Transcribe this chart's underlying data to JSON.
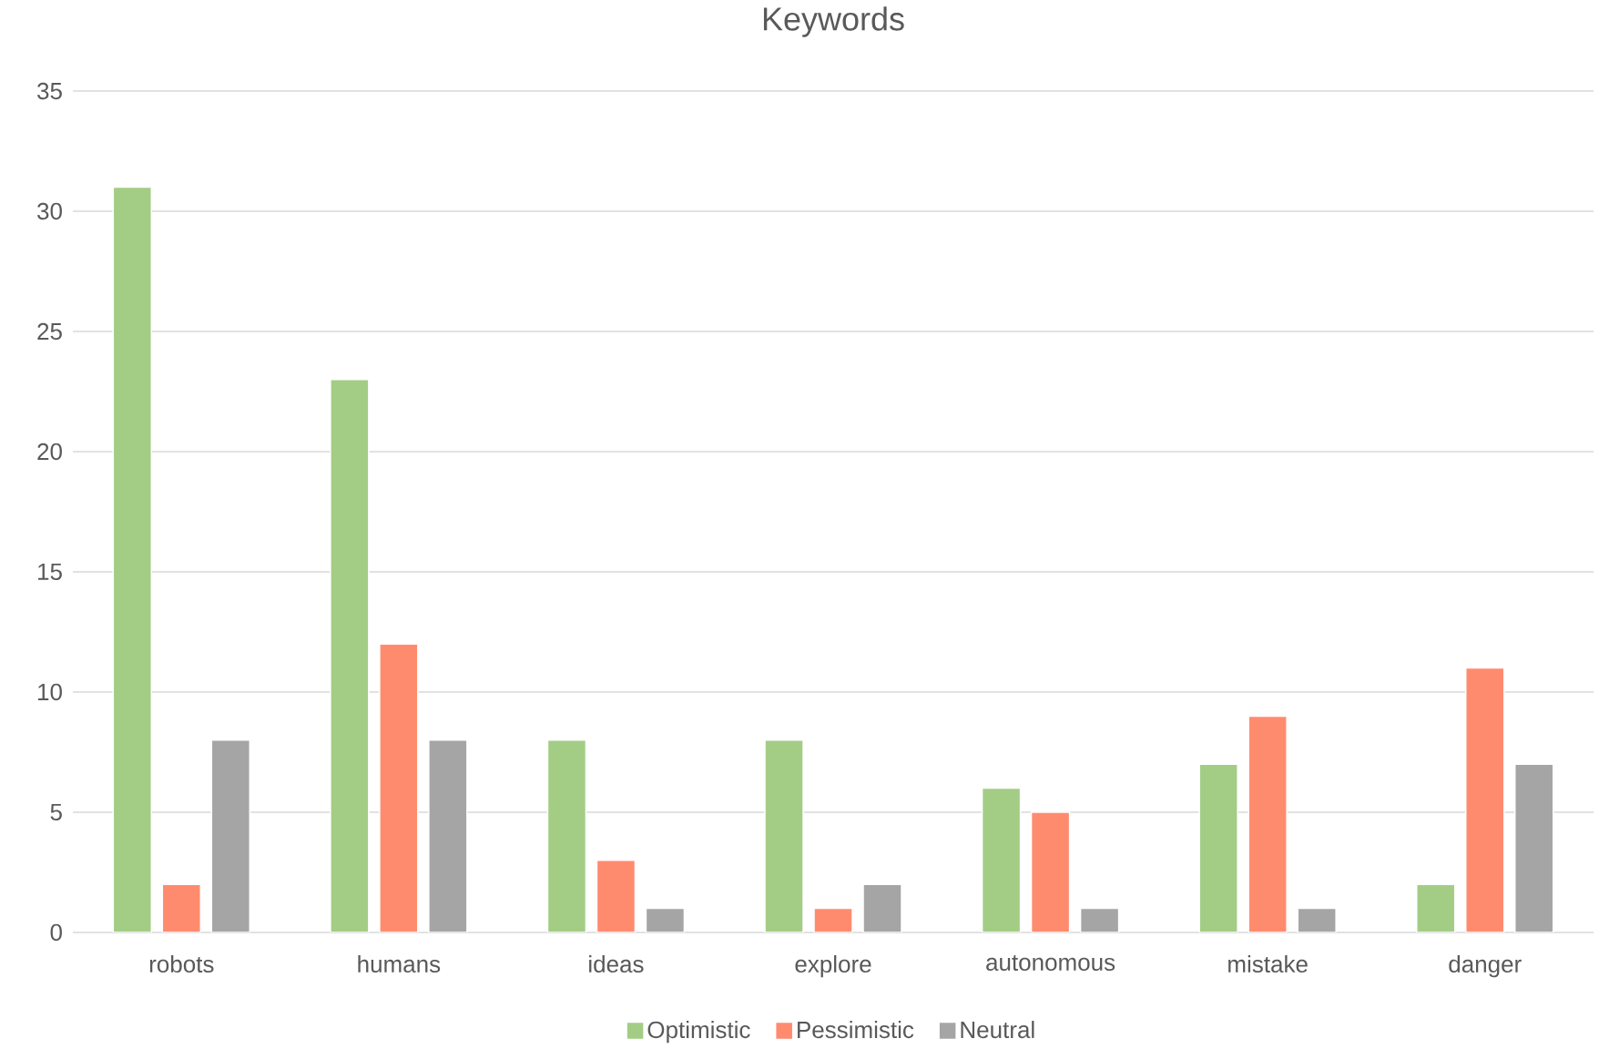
{
  "chart_data": {
    "type": "bar",
    "title": "Keywords",
    "categories": [
      "robots",
      "humans",
      "ideas",
      "explore",
      "autonomous",
      "mistake",
      "danger"
    ],
    "series": [
      {
        "name": "Optimistic",
        "color": "#a3cd85",
        "values": [
          31,
          23,
          8,
          8,
          6,
          7,
          2
        ]
      },
      {
        "name": "Pessimistic",
        "color": "#ff8b6f",
        "values": [
          2,
          12,
          3,
          1,
          5,
          9,
          11
        ]
      },
      {
        "name": "Neutral",
        "color": "#a5a5a5",
        "values": [
          8,
          8,
          1,
          2,
          1,
          1,
          7
        ]
      }
    ],
    "ylim": [
      0,
      35
    ],
    "yticks": [
      0,
      5,
      10,
      15,
      20,
      25,
      30,
      35
    ],
    "grid": "y",
    "legend": "bottom"
  }
}
